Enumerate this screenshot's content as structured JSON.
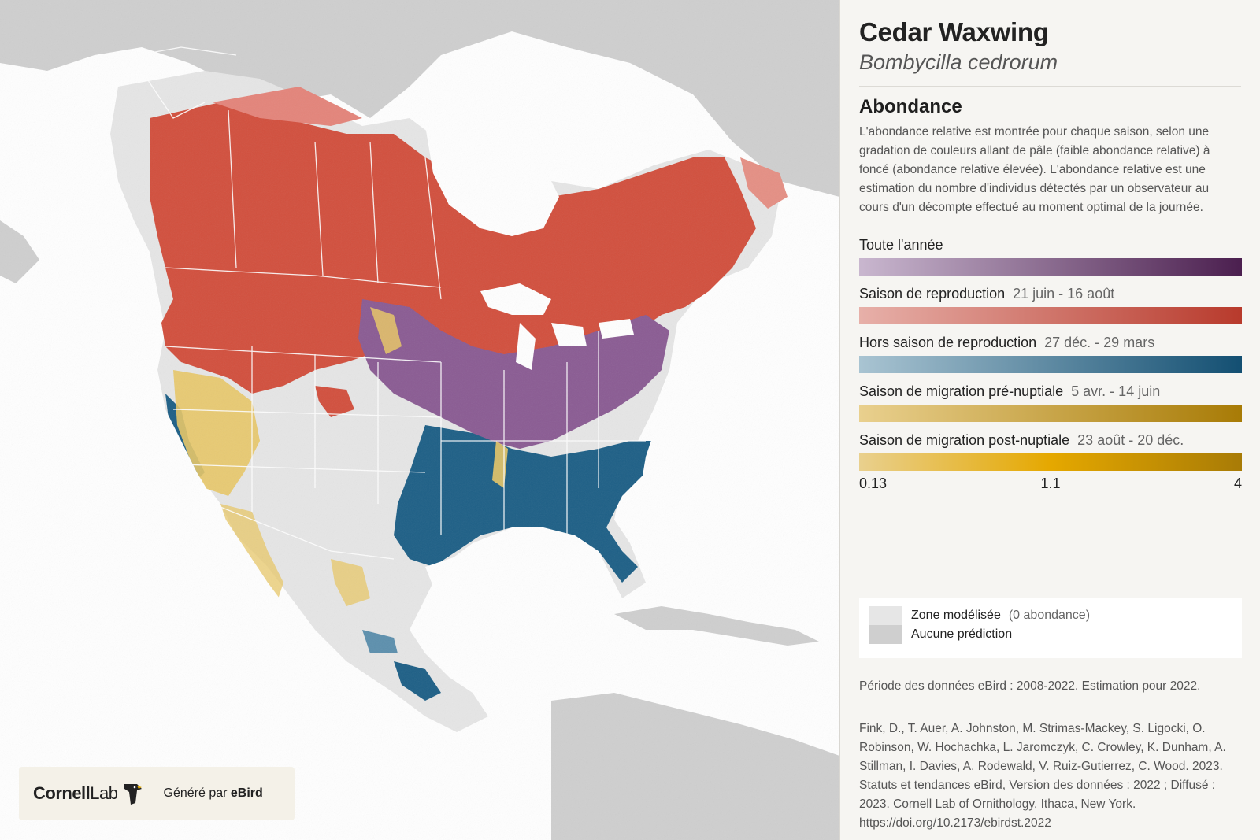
{
  "species": {
    "common_name": "Cedar Waxwing",
    "scientific_name": "Bombycilla cedrorum"
  },
  "abundance": {
    "title": "Abondance",
    "description": "L'abondance relative est montrée pour chaque saison, selon une gradation de couleurs allant de pâle (faible abondance relative) à foncé (abondance relative élevée). L'abondance relative est une estimation du nombre d'individus détectés par un observateur au cours d'un décompte effectué au moment optimal de la journée."
  },
  "seasons": [
    {
      "label": "Toute l'année",
      "dates": "",
      "color_light": "#c9b7cf",
      "color_dark": "#4b1f4f"
    },
    {
      "label": "Saison de reproduction",
      "dates": "21 juin - 16 août",
      "color_light": "#e7b0a9",
      "color_dark": "#b83a2c"
    },
    {
      "label": "Hors saison de reproduction",
      "dates": "27 déc. - 29 mars",
      "color_light": "#a9c4d2",
      "color_dark": "#134f72"
    },
    {
      "label": "Saison de migration pré-nuptiale",
      "dates": "5 avr. - 14 juin",
      "color_light": "#e9d08e",
      "color_dark": "#a87b06"
    },
    {
      "label": "Saison de migration post-nuptiale",
      "dates": "23 août - 20 déc.",
      "color_light": "#e9d08e",
      "color_dark": "#a87b06"
    }
  ],
  "scale": {
    "min": "0.13",
    "mid": "1.1",
    "max": "4"
  },
  "legend": {
    "modeled_zone": "Zone modélisée",
    "modeled_note": "(0 abondance)",
    "no_prediction": "Aucune prédiction",
    "modeled_color": "#e6e6e6",
    "no_prediction_color": "#cfcfcf"
  },
  "data_period": "Période des données eBird : 2008-2022. Estimation pour 2022.",
  "citation": "Fink, D., T. Auer, A. Johnston, M. Strimas-Mackey, S. Ligocki, O. Robinson, W. Hochachka, L. Jaromczyk, C. Crowley, K. Dunham, A. Stillman, I. Davies, A. Rodewald, V. Ruiz-Gutierrez, C. Wood. 2023. Statuts et tendances eBird, Version des données : 2022 ; Diffusé : 2023. Cornell Lab of Ornithology, Ithaca, New York. https://doi.org/10.2173/ebirdst.2022",
  "branding": {
    "logo_cornell": "Cornell",
    "logo_lab": "Lab",
    "generated_by": "Généré par",
    "ebird": "eBird"
  },
  "map": {
    "land_color": "#e3e3e3",
    "no_prediction_color": "#cfcfcf",
    "water_color": "#ffffff",
    "breeding_color": "#d24f3d",
    "nonbreeding_color": "#1d5f86",
    "yearround_color": "#7e5288",
    "migration_color": "#e8c766"
  }
}
